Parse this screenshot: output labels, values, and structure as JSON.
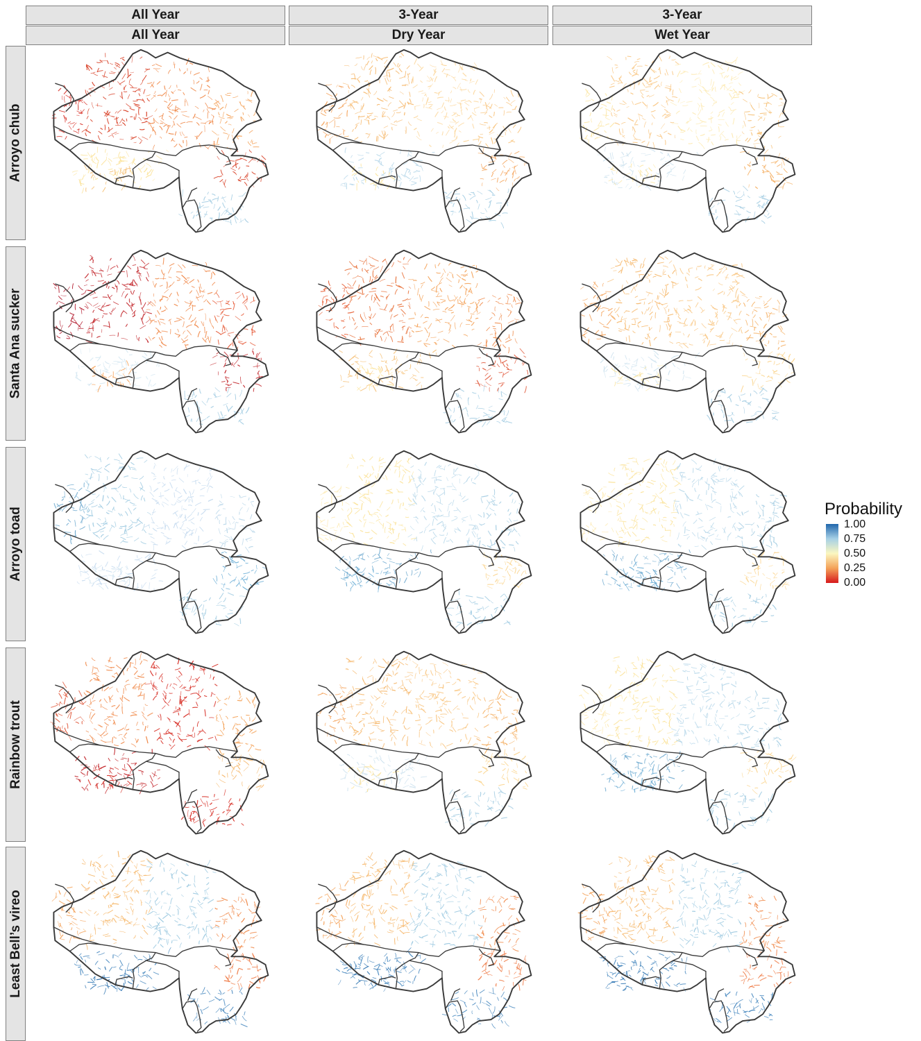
{
  "column_headers": [
    {
      "top": "All Year",
      "bottom": "All Year"
    },
    {
      "top": "3-Year",
      "bottom": "Dry Year"
    },
    {
      "top": "3-Year",
      "bottom": "Wet Year"
    }
  ],
  "row_labels": [
    "Arroyo chub",
    "Santa Ana sucker",
    "Arroyo toad",
    "Rainbow trout",
    "Least Bell’s vireo"
  ],
  "legend": {
    "title": "Probability",
    "labels": [
      "1.00",
      "0.75",
      "0.50",
      "0.25",
      "0.00"
    ],
    "colors": [
      "#2166ac",
      "#a6d0e6",
      "#fbf7c0",
      "#f4a259",
      "#d7191c"
    ]
  },
  "panels": [
    [
      "mostly-red-north",
      "orange-yellow-mix",
      "yellow-orange-light"
    ],
    [
      "dark-red-north",
      "orange-red",
      "orange-yellow"
    ],
    [
      "light-blue",
      "yellow-blue-mix",
      "yellow-blue-mix"
    ],
    [
      "red",
      "orange-yellow",
      "yellow-blue-mix"
    ],
    [
      "orange-north-blue-south",
      "orange-north-blue-south",
      "orange-north-blue-south"
    ]
  ]
}
